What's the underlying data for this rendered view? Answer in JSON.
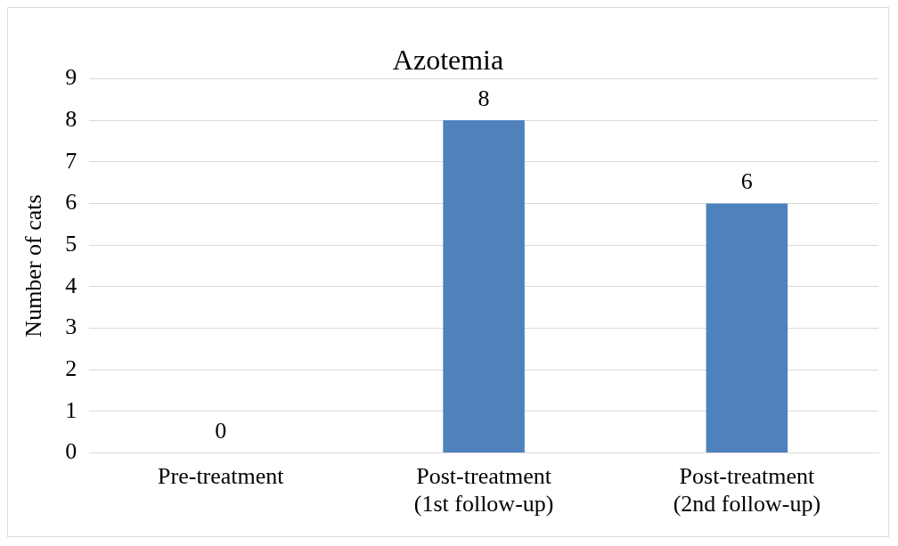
{
  "chart_data": {
    "type": "bar",
    "title": "Azotemia",
    "ylabel": "Number of cats",
    "categories": [
      "Pre-treatment",
      "Post-treatment\n(1st follow-up)",
      "Post-treatment\n(2nd follow-up)"
    ],
    "values": [
      0,
      8,
      6
    ],
    "color": "#4f81bd",
    "ylim": [
      0,
      9
    ],
    "yticks": [
      0,
      1,
      2,
      3,
      4,
      5,
      6,
      7,
      8,
      9
    ],
    "grid": "y",
    "data_labels": true,
    "legend": false
  }
}
